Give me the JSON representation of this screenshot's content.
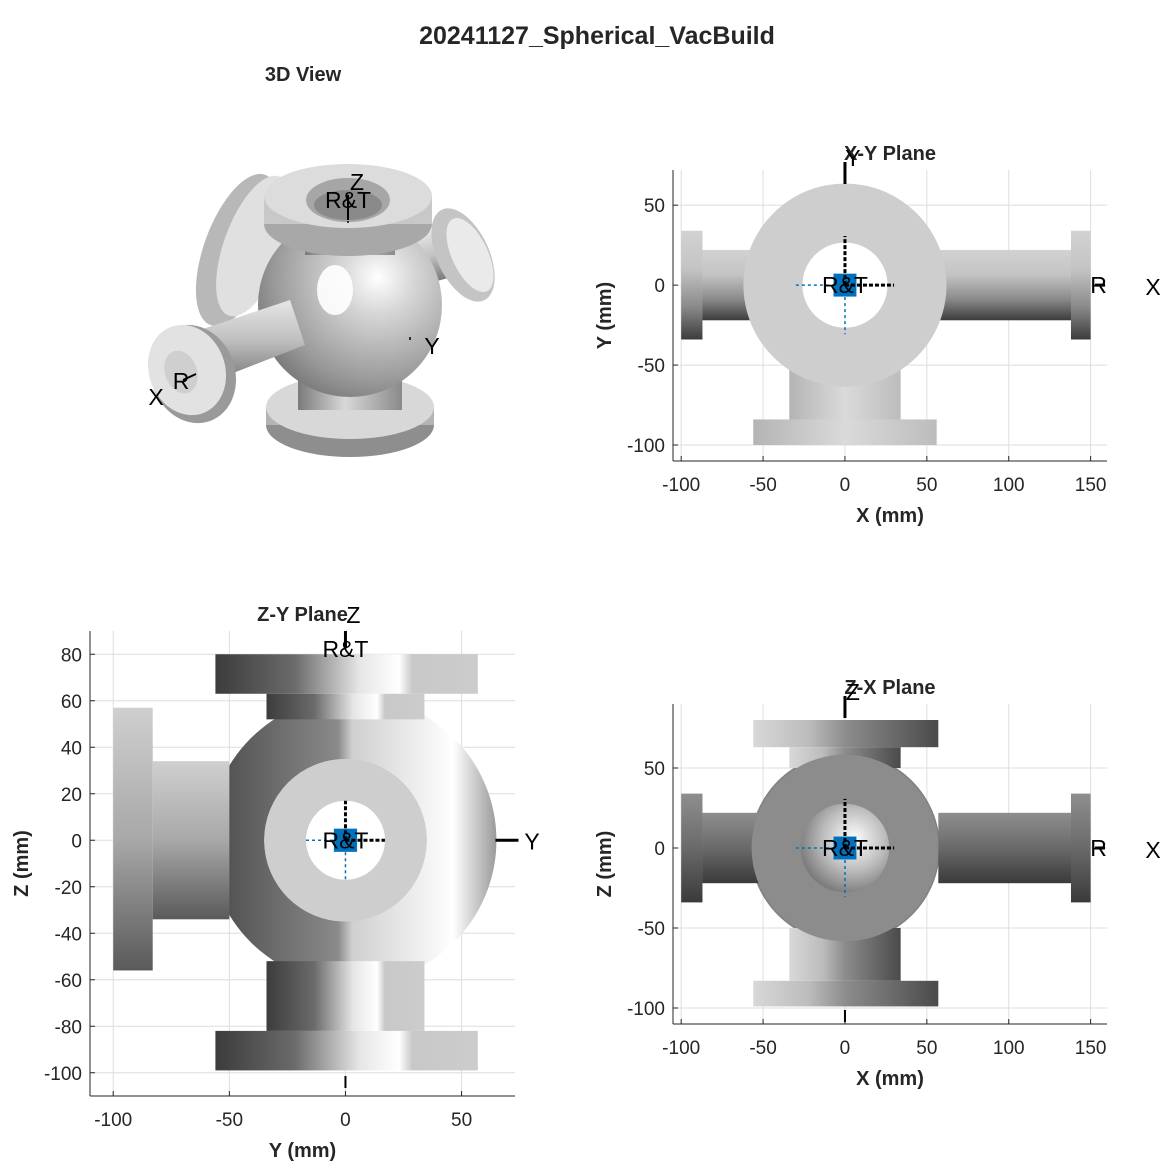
{
  "figure": {
    "title": "20241127_Spherical_VacBuild"
  },
  "colors": {
    "marker": "#0072bd",
    "grid": "#dedede",
    "axis": "#262626",
    "part_light": "#cccccc",
    "part_dark": "#3c3c3c"
  },
  "frame_labels": {
    "r": "R",
    "t": "T",
    "x": "X",
    "y": "Y",
    "z": "Z"
  },
  "view3d": {
    "title": "3D View"
  },
  "chart_data": [
    {
      "type": "diagram",
      "title": "X-Y Plane",
      "xlabel": "X (mm)",
      "ylabel": "Y (mm)",
      "xlim": [
        -105,
        160
      ],
      "ylim": [
        -110,
        72
      ],
      "xticks": [
        -100,
        -50,
        0,
        50,
        100,
        150
      ],
      "yticks": [
        -100,
        -50,
        0,
        50
      ],
      "grid": true,
      "frame": {
        "origin": [
          0,
          0
        ],
        "markerSize": 14,
        "axisLen": 30
      },
      "parts": [
        {
          "x0": -100,
          "x1": -87,
          "y0": -34,
          "y1": 34,
          "shade": "h-gray"
        },
        {
          "x0": -87,
          "x1": -50,
          "y0": -22,
          "y1": 22,
          "shade": "h-gray"
        },
        {
          "x0": 57,
          "x1": 140,
          "y0": -22,
          "y1": 22,
          "shade": "h-gray"
        },
        {
          "x0": 138,
          "x1": 150,
          "y0": -34,
          "y1": 34,
          "shade": "h-gray"
        },
        {
          "x0": -34,
          "x1": 34,
          "y0": -85,
          "y1": -45,
          "shade": "v-light"
        },
        {
          "x0": -56,
          "x1": 56,
          "y0": -100,
          "y1": -84,
          "shade": "v-light"
        }
      ],
      "rings": [
        {
          "cx": 0,
          "cy": 0,
          "r": 62,
          "inner": 26,
          "fill": "#cecece"
        }
      ]
    },
    {
      "type": "diagram",
      "title": "Z-Y Plane",
      "xlabel": "Y (mm)",
      "ylabel": "Z (mm)",
      "xlim": [
        -110,
        73
      ],
      "ylim": [
        -110,
        90
      ],
      "xticks": [
        -100,
        -50,
        0,
        50
      ],
      "yticks": [
        -100,
        -80,
        -60,
        -40,
        -20,
        0,
        20,
        40,
        60,
        80
      ],
      "grid": true,
      "frame": {
        "origin": [
          0,
          0
        ],
        "markerSize": 10,
        "axisLen": 17
      },
      "parts": [
        {
          "x0": -56,
          "x1": 57,
          "y0": 63,
          "y1": 80,
          "shade": "v-dark"
        },
        {
          "x0": -34,
          "x1": 34,
          "y0": 52,
          "y1": 63,
          "shade": "v-dark"
        },
        {
          "x0": -56,
          "x1": 57,
          "y0": -99,
          "y1": -82,
          "shade": "v-dark"
        },
        {
          "x0": -34,
          "x1": 34,
          "y0": -82,
          "y1": -52,
          "shade": "v-dark"
        },
        {
          "x0": -100,
          "x1": -83,
          "y0": -56,
          "y1": 57,
          "shade": "h-light"
        },
        {
          "x0": -83,
          "x1": -50,
          "y0": -34,
          "y1": 34,
          "shade": "h-light"
        }
      ],
      "rings": [
        {
          "cx": 3,
          "cy": 0,
          "r": 62,
          "inner": 0,
          "fill": "#6e6e6e"
        },
        {
          "cx": 0,
          "cy": 0,
          "r": 35,
          "inner": 17,
          "fill": "#cecece"
        }
      ]
    },
    {
      "type": "diagram",
      "title": "Z-X Plane",
      "xlabel": "X (mm)",
      "ylabel": "Z (mm)",
      "xlim": [
        -105,
        160
      ],
      "ylim": [
        -110,
        90
      ],
      "xticks": [
        -100,
        -50,
        0,
        50,
        100,
        150
      ],
      "yticks": [
        -100,
        -50,
        0,
        50
      ],
      "grid": true,
      "frame": {
        "origin": [
          0,
          0
        ],
        "markerSize": 14,
        "axisLen": 30
      },
      "parts": [
        {
          "x0": -56,
          "x1": 57,
          "y0": 63,
          "y1": 80,
          "shade": "v-mix"
        },
        {
          "x0": -34,
          "x1": 34,
          "y0": 50,
          "y1": 63,
          "shade": "v-mix"
        },
        {
          "x0": -56,
          "x1": 57,
          "y0": -99,
          "y1": -83,
          "shade": "v-mix"
        },
        {
          "x0": -34,
          "x1": 34,
          "y0": -83,
          "y1": -50,
          "shade": "v-mix"
        },
        {
          "x0": -100,
          "x1": -87,
          "y0": -34,
          "y1": 34,
          "shade": "h-dark"
        },
        {
          "x0": -87,
          "x1": -50,
          "y0": -22,
          "y1": 22,
          "shade": "h-dark"
        },
        {
          "x0": 57,
          "x1": 140,
          "y0": -22,
          "y1": 22,
          "shade": "h-dark"
        },
        {
          "x0": 138,
          "x1": 150,
          "y0": -34,
          "y1": 34,
          "shade": "h-dark"
        }
      ],
      "rings": [
        {
          "cx": 0,
          "cy": 0,
          "r": 58,
          "inner": 0,
          "fill": "#9a9a9a"
        },
        {
          "cx": 0,
          "cy": 0,
          "r": 57,
          "inner": 27,
          "fill": "#8c8c8c"
        }
      ]
    }
  ]
}
